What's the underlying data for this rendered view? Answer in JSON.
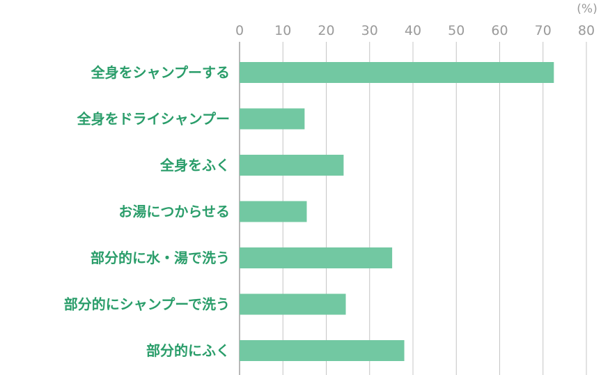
{
  "chart_data": {
    "type": "bar",
    "orientation": "horizontal",
    "unit": "(%)",
    "title": "",
    "xlabel": "",
    "ylabel": "",
    "xlim": [
      0,
      80
    ],
    "ticks": [
      0,
      10,
      20,
      30,
      40,
      50,
      60,
      70,
      80
    ],
    "tick_labels": [
      "0",
      "10",
      "20",
      "30",
      "40",
      "50",
      "60",
      "70",
      "80"
    ],
    "grid": true,
    "categories": [
      "全身をシャンプーする",
      "全身をドライシャンプー",
      "全身をふく",
      "お湯につからせる",
      "部分的に水・湯で洗う",
      "部分的にシャンプーで洗う",
      "部分的にふく"
    ],
    "values": [
      72.5,
      15,
      24,
      15.5,
      35.2,
      24.5,
      38
    ]
  },
  "colors": {
    "bar": "#72c8a2",
    "label": "#2a9d6a",
    "tick": "#9a9a9a",
    "grid": "#c4c4c4"
  }
}
